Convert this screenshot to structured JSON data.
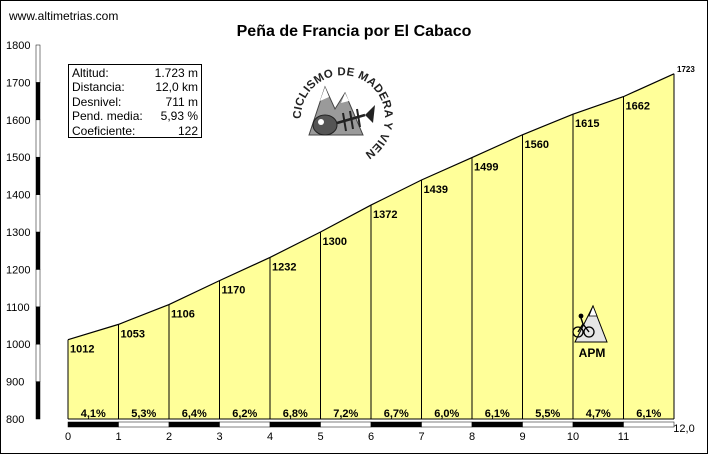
{
  "site": "www.altimetrias.com",
  "chart_data": {
    "type": "area",
    "title": "Peña de Francia por El Cabaco",
    "x_km": [
      0,
      1,
      2,
      3,
      4,
      5,
      6,
      7,
      8,
      9,
      10,
      11,
      12
    ],
    "altitudes": [
      1012,
      1053,
      1106,
      1170,
      1232,
      1300,
      1372,
      1439,
      1499,
      1560,
      1615,
      1662,
      1723
    ],
    "altitude_labels": [
      "1012",
      "1053",
      "1106",
      "1170",
      "1232",
      "1300",
      "1372",
      "1439",
      "1499",
      "1560",
      "1615",
      "1662",
      "1723"
    ],
    "gradients": [
      "4,1%",
      "5,3%",
      "6,4%",
      "6,2%",
      "6,8%",
      "7,2%",
      "6,7%",
      "6,0%",
      "6,1%",
      "5,5%",
      "4,7%",
      "6,1%"
    ],
    "ylim": [
      800,
      1800
    ],
    "yticks": [
      "800",
      "900",
      "1000",
      "1100",
      "1200",
      "1300",
      "1400",
      "1500",
      "1600",
      "1700",
      "1800"
    ],
    "xticks": [
      "0",
      "1",
      "2",
      "3",
      "4",
      "5",
      "6",
      "7",
      "8",
      "9",
      "10",
      "11"
    ],
    "x_end_label": "12,0",
    "fill_color": "#ffff99",
    "line_color": "#000000"
  },
  "stats": [
    {
      "label": "Altitud:",
      "value": "1.723 m"
    },
    {
      "label": "Distancia:",
      "value": "12,0 km"
    },
    {
      "label": "Desnivel:",
      "value": "711 m"
    },
    {
      "label": "Pend. media:",
      "value": "5,93 %"
    },
    {
      "label": "Coeficiente:",
      "value": "122"
    }
  ],
  "logo": {
    "text": "CICLISMO DE MADERA Y VIENTO",
    "icon": "fish-skeleton-mountain-logo"
  },
  "apm": {
    "text": "APM",
    "icon": "cyclist-mountain-icon"
  }
}
